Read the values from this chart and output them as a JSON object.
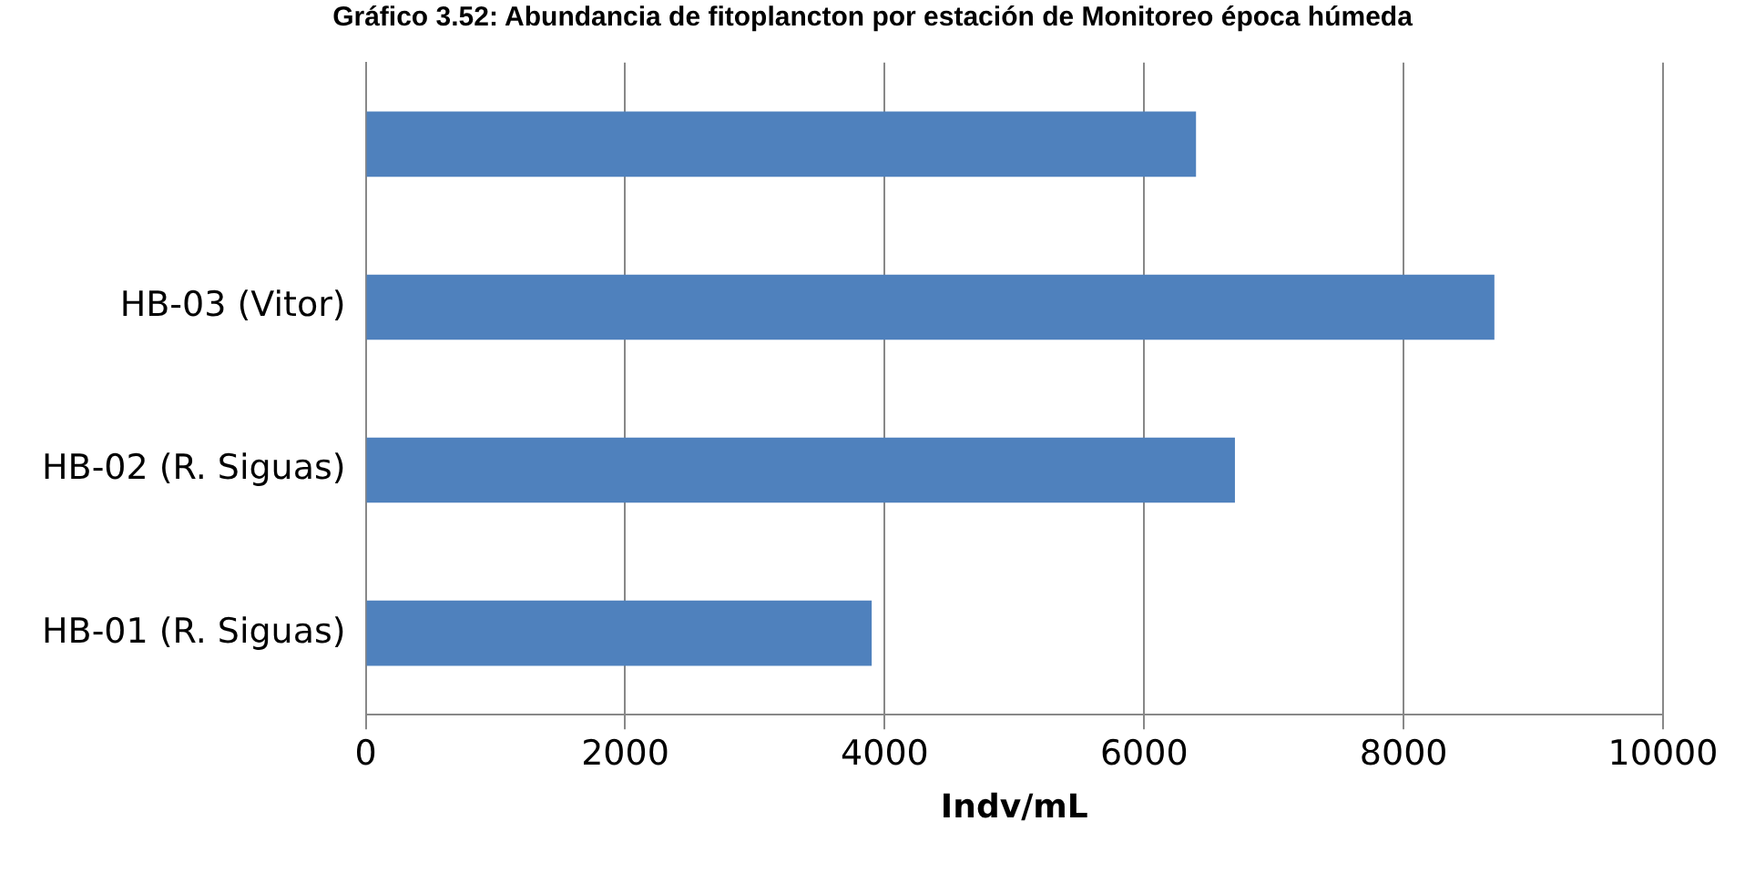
{
  "chart_data": {
    "type": "bar",
    "orientation": "horizontal",
    "title": "Gráfico 3.52: Abundancia de fitoplancton por estación de Monitoreo época húmeda",
    "xlabel": "Indv/mL",
    "categories": [
      null,
      "HB-03 (Vitor)",
      "HB-02 (R. Siguas)",
      "HB-01 (R. Siguas)"
    ],
    "values": [
      6400,
      8700,
      6700,
      3900
    ],
    "color": "#4f81bd",
    "xlim": [
      0,
      10000
    ],
    "xticks": [
      0,
      2000,
      4000,
      6000,
      8000,
      10000
    ],
    "grid": "x",
    "legend": false
  }
}
